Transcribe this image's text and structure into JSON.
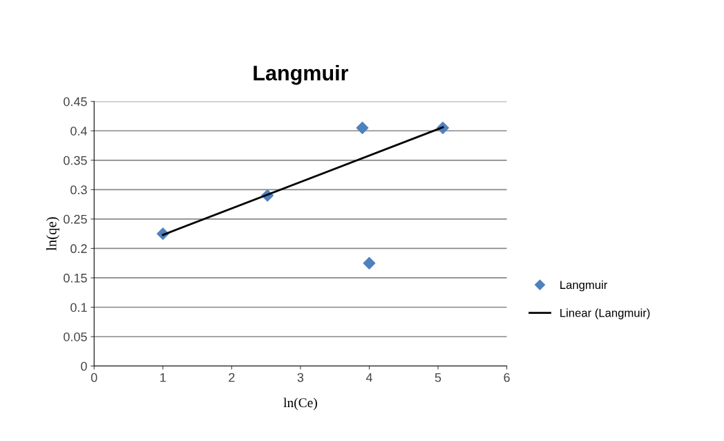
{
  "chart_data": {
    "type": "scatter",
    "title": "Langmuir",
    "xlabel": "ln(Ce)",
    "ylabel": "ln(qe)",
    "xlim": [
      0,
      6
    ],
    "xticks": [
      0,
      1,
      2,
      3,
      4,
      5,
      6
    ],
    "ylim": [
      0,
      0.45
    ],
    "yticks": [
      0,
      0.05,
      0.1,
      0.15,
      0.2,
      0.25,
      0.3,
      0.35,
      0.4,
      0.45
    ],
    "grid": "y",
    "legend": "right",
    "series": [
      {
        "name": "Langmuir",
        "marker": "diamond",
        "color": "#4f81bd",
        "x": [
          1.0,
          2.52,
          3.9,
          4.0,
          5.07
        ],
        "values": [
          0.225,
          0.29,
          0.405,
          0.175,
          0.405
        ]
      },
      {
        "name": "Linear (Langmuir)",
        "type": "line",
        "marker": "none",
        "color": "#000000",
        "x": [
          1.0,
          5.07
        ],
        "values": [
          0.223,
          0.406
        ]
      }
    ]
  }
}
